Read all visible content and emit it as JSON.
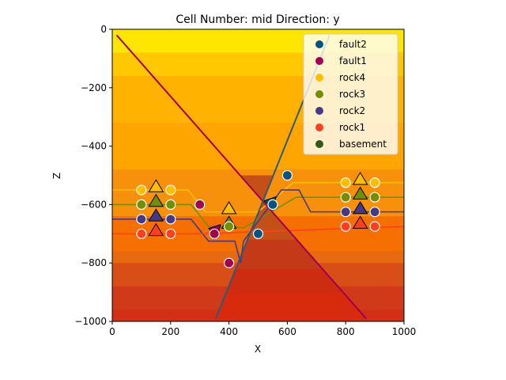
{
  "chart_data": {
    "type": "scatter",
    "title": "Cell Number: mid Direction: y",
    "xlabel": "X",
    "ylabel": "Z",
    "xlim": [
      0,
      1000
    ],
    "ylim": [
      -1000,
      0
    ],
    "xticks": [
      0,
      200,
      400,
      600,
      800,
      1000
    ],
    "yticks": [
      0,
      -200,
      -400,
      -600,
      -800,
      -1000
    ],
    "grid": false,
    "legend_position": "top-right",
    "legend": [
      {
        "name": "fault2",
        "color": "#015482"
      },
      {
        "name": "fault1",
        "color": "#9f0052"
      },
      {
        "name": "rock4",
        "color": "#ffbe00"
      },
      {
        "name": "rock3",
        "color": "#728f02"
      },
      {
        "name": "rock2",
        "color": "#443988"
      },
      {
        "name": "rock1",
        "color": "#ff3f20"
      },
      {
        "name": "basement",
        "color": "#325916"
      }
    ],
    "background_layers": [
      {
        "z_top": 0,
        "color": "#ffe600"
      },
      {
        "z_top": -80,
        "color": "#ffc800"
      },
      {
        "z_top": -160,
        "color": "#ffb300"
      },
      {
        "z_top": -320,
        "color": "#ffa500"
      },
      {
        "z_top": -480,
        "color": "#f7900a"
      },
      {
        "z_top": -640,
        "color": "#f57000"
      },
      {
        "z_top": -760,
        "color": "#e86a10"
      },
      {
        "z_top": -800,
        "color": "#d94e16"
      },
      {
        "z_top": -880,
        "color": "#d03a18"
      },
      {
        "z_top": -960,
        "color": "#d23014"
      }
    ],
    "block_layers": [
      {
        "z_top": -500,
        "color": "#c45018"
      },
      {
        "z_top": -720,
        "color": "#c43a18"
      },
      {
        "z_top": -820,
        "color": "#cc2c10"
      },
      {
        "z_top": -900,
        "color": "#d82a0c"
      }
    ],
    "faults": [
      {
        "name": "fault1",
        "color": "#9f0052",
        "x": [
          15,
          870
        ],
        "z": [
          -20,
          -990
        ]
      },
      {
        "name": "fault2",
        "color": "#2e5a7a",
        "x": [
          355,
          745
        ],
        "z": [
          -990,
          -20
        ]
      }
    ],
    "contacts": [
      {
        "name": "rock4",
        "color": "#ffbe00",
        "x": [
          0,
          260,
          320,
          400,
          500,
          620,
          700,
          1000
        ],
        "z": [
          -550,
          -550,
          -625,
          -625,
          -625,
          -525,
          -525,
          -525
        ]
      },
      {
        "name": "rock3",
        "color": "#728f02",
        "x": [
          0,
          270,
          330,
          400,
          450,
          630,
          700,
          1000
        ],
        "z": [
          -600,
          -600,
          -675,
          -675,
          -680,
          -575,
          -575,
          -575
        ]
      },
      {
        "name": "rock2",
        "color": "#443988",
        "x": [
          0,
          270,
          330,
          420,
          440,
          450,
          580,
          640,
          680,
          1000
        ],
        "z": [
          -650,
          -650,
          -725,
          -725,
          -800,
          -725,
          -550,
          -550,
          -625,
          -625
        ]
      },
      {
        "name": "rock1",
        "color": "#ff3f20",
        "x": [
          0,
          200,
          260,
          300,
          1000
        ],
        "z": [
          -700,
          -700,
          -700,
          -700,
          -675
        ]
      }
    ],
    "points": [
      {
        "series": "fault2",
        "x": [
          500,
          550,
          600
        ],
        "z": [
          -700,
          -600,
          -500
        ]
      },
      {
        "series": "fault1",
        "x": [
          300,
          350,
          400
        ],
        "z": [
          -600,
          -700,
          -800
        ]
      },
      {
        "series": "rock4",
        "x": [
          100,
          200,
          800,
          900
        ],
        "z": [
          -550,
          -550,
          -525,
          -525
        ]
      },
      {
        "series": "rock3",
        "x": [
          100,
          200,
          400,
          800,
          900
        ],
        "z": [
          -600,
          -600,
          -675,
          -575,
          -575
        ]
      },
      {
        "series": "rock2",
        "x": [
          100,
          200,
          800,
          900
        ],
        "z": [
          -650,
          -650,
          -625,
          -625
        ]
      },
      {
        "series": "rock1",
        "x": [
          100,
          200,
          800,
          900
        ],
        "z": [
          -700,
          -700,
          -675,
          -675
        ]
      }
    ],
    "orientations": [
      {
        "series": "rock4",
        "x": [
          150,
          400,
          850
        ],
        "z": [
          -540,
          -615,
          -515
        ]
      },
      {
        "series": "rock3",
        "x": [
          150,
          400,
          850
        ],
        "z": [
          -590,
          -665,
          -565
        ]
      },
      {
        "series": "rock2",
        "x": [
          150,
          850
        ],
        "z": [
          -640,
          -615
        ]
      },
      {
        "series": "rock1",
        "x": [
          150,
          850
        ],
        "z": [
          -690,
          -665
        ]
      },
      {
        "series": "fault1",
        "x": [
          355
        ],
        "z": [
          -690
        ]
      },
      {
        "series": "fault2",
        "x": [
          545
        ],
        "z": [
          -595
        ]
      }
    ]
  }
}
